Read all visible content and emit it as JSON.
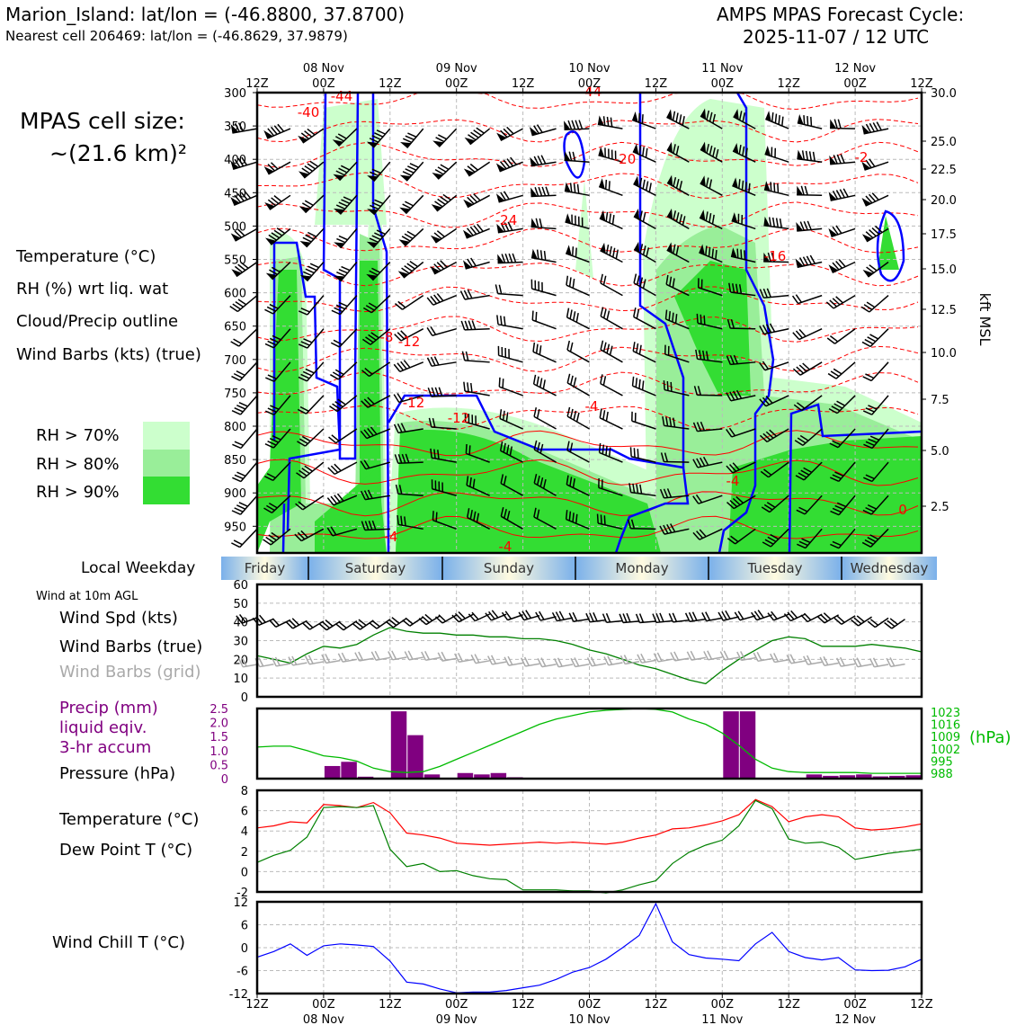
{
  "header": {
    "station": "Marion_Island: lat/lon = (-46.8800, 37.8700)",
    "nearest_cell": "Nearest cell 206469: lat/lon = (-46.8629, 37.9879)",
    "cycle_title": "AMPS MPAS Forecast Cycle:",
    "cycle_date": "2025-11-07 / 12 UTC",
    "cell_size_label": "MPAS cell size:",
    "cell_size_value": "~(21.6 km)²"
  },
  "colors": {
    "temperature": "#ff0000",
    "rh": "#33cc33",
    "cloud": "#0000ff",
    "wind_spd": "#008000",
    "precip": "#800080",
    "pressure": "#00bb00",
    "dewpoint": "#008000",
    "windchill": "#0000ff",
    "grid_barbs": "#aaaaaa",
    "rh70": "#ccffcc",
    "rh80": "#99ee99",
    "rh90": "#33dd33"
  },
  "time_axis": {
    "ticks": [
      "12Z",
      "00Z",
      "12Z",
      "00Z",
      "12Z",
      "00Z",
      "12Z",
      "00Z",
      "12Z",
      "00Z",
      "12Z"
    ],
    "dates": [
      "08 Nov",
      "09 Nov",
      "10 Nov",
      "11 Nov",
      "12 Nov"
    ],
    "weekdays": [
      "Friday",
      "Saturday",
      "Sunday",
      "Monday",
      "Tuesday",
      "Wednesday"
    ]
  },
  "upper_panel": {
    "legend": {
      "temperature": "Temperature (°C)",
      "rh": "RH (%) wrt liq. wat",
      "cloud": "Cloud/Precip outline",
      "barbs": "Wind Barbs (kts) (true)",
      "rh70": "RH > 70%",
      "rh80": "RH > 80%",
      "rh90": "RH > 90%"
    },
    "pressure_ticks": [
      "300",
      "350",
      "400",
      "450",
      "500",
      "550",
      "600",
      "650",
      "700",
      "750",
      "800",
      "850",
      "900",
      "950"
    ],
    "height_ticks": [
      "30.0",
      "25.0",
      "22.5",
      "20.0",
      "17.5",
      "15.0",
      "12.5",
      "10.0",
      "7.5",
      "5.0",
      "2.5"
    ],
    "height_label": "kft MSL",
    "local_weekday_label": "Local Weekday",
    "isotherm_labels": [
      "-44",
      "-40",
      "-44",
      "-20",
      "-24",
      "-16",
      "-8",
      "-12",
      "-12",
      "-12",
      "-4",
      "-4",
      "-4",
      "-4",
      "0",
      "-2"
    ]
  },
  "chart_data": [
    {
      "type": "line",
      "title": "Wind at 10m AGL",
      "x": [
        "12Z",
        "15Z",
        "18Z",
        "21Z",
        "00Z",
        "03Z",
        "06Z",
        "09Z",
        "12Z",
        "15Z",
        "18Z",
        "21Z",
        "00Z",
        "03Z",
        "06Z",
        "09Z",
        "12Z",
        "15Z",
        "18Z",
        "21Z",
        "00Z",
        "03Z",
        "06Z",
        "09Z",
        "12Z",
        "15Z",
        "18Z",
        "21Z",
        "00Z",
        "03Z",
        "06Z",
        "09Z",
        "12Z",
        "15Z",
        "18Z",
        "21Z",
        "00Z",
        "03Z",
        "06Z",
        "09Z",
        "12Z"
      ],
      "series": [
        {
          "name": "Wind Spd (kts)",
          "values": [
            22,
            20,
            18,
            23,
            27,
            26,
            28,
            33,
            37,
            35,
            34,
            34,
            33,
            33,
            32,
            32,
            31,
            31,
            30,
            28,
            25,
            23,
            20,
            17,
            15,
            12,
            9,
            7,
            14,
            20,
            25,
            30,
            32,
            31,
            27,
            27,
            27,
            28,
            27,
            26,
            24
          ]
        }
      ],
      "labels": [
        "Wind Spd (kts)",
        "Wind Barbs (true)",
        "Wind Barbs (grid)"
      ],
      "ylim": [
        0,
        60
      ],
      "yticks": [
        "60",
        "50",
        "40",
        "30",
        "20",
        "10",
        "0"
      ],
      "grid": true
    },
    {
      "type": "bar",
      "x": [
        "12Z",
        "15Z",
        "18Z",
        "21Z",
        "00Z",
        "03Z",
        "06Z",
        "09Z",
        "12Z",
        "15Z",
        "18Z",
        "21Z",
        "00Z",
        "03Z",
        "06Z",
        "09Z",
        "12Z",
        "15Z",
        "18Z",
        "21Z",
        "00Z",
        "03Z",
        "06Z",
        "09Z",
        "12Z",
        "15Z",
        "18Z",
        "21Z",
        "00Z",
        "03Z",
        "06Z",
        "09Z",
        "12Z",
        "15Z",
        "18Z",
        "21Z",
        "00Z",
        "03Z",
        "06Z",
        "09Z",
        "12Z"
      ],
      "series": [
        {
          "name": "Precip (mm) liquid eqiv. 3-hr accum",
          "values": [
            0,
            0,
            0,
            0,
            0.45,
            0.6,
            0.07,
            0,
            2.4,
            1.55,
            0.15,
            0,
            0.2,
            0.15,
            0.2,
            0.05,
            0,
            0,
            0,
            0,
            0,
            0,
            0,
            0,
            0,
            0,
            0,
            0,
            2.4,
            2.4,
            0,
            0,
            0,
            0.15,
            0.1,
            0.12,
            0.15,
            0.08,
            0.1,
            0.12,
            0
          ]
        },
        {
          "name": "Pressure (hPa)",
          "values": [
            1003,
            1003.5,
            1003.5,
            1001,
            998,
            997,
            995,
            991,
            989,
            988.5,
            989,
            992,
            996,
            1000,
            1004,
            1008,
            1012,
            1016,
            1019,
            1021,
            1023,
            1024,
            1024.5,
            1025,
            1024.5,
            1023,
            1019,
            1016,
            1011,
            1004,
            996,
            991,
            989,
            988.5,
            988.5,
            988.5,
            988.5,
            988,
            988,
            988,
            988
          ]
        }
      ],
      "labels": [
        "Precip (mm)",
        "liquid eqiv.",
        "3-hr accum",
        "Pressure (hPa)"
      ],
      "ylim": [
        0,
        2.5
      ],
      "yticks": [
        "2.5",
        "2.0",
        "1.5",
        "1.0",
        "0.5",
        "0"
      ],
      "y2lim": [
        985,
        1025
      ],
      "y2ticks": [
        "1023",
        "1016",
        "1009",
        "1002",
        "995",
        "988"
      ],
      "y2label": "(hPa)"
    },
    {
      "type": "line",
      "x": [
        "12Z",
        "15Z",
        "18Z",
        "21Z",
        "00Z",
        "03Z",
        "06Z",
        "09Z",
        "12Z",
        "15Z",
        "18Z",
        "21Z",
        "00Z",
        "03Z",
        "06Z",
        "09Z",
        "12Z",
        "15Z",
        "18Z",
        "21Z",
        "00Z",
        "03Z",
        "06Z",
        "09Z",
        "12Z",
        "15Z",
        "18Z",
        "21Z",
        "00Z",
        "03Z",
        "06Z",
        "09Z",
        "12Z",
        "15Z",
        "18Z",
        "21Z",
        "00Z",
        "03Z",
        "06Z",
        "09Z",
        "12Z"
      ],
      "series": [
        {
          "name": "Temperature (°C)",
          "values": [
            4.3,
            4.5,
            4.9,
            4.8,
            6.6,
            6.5,
            6.3,
            6.8,
            5.8,
            3.8,
            3.6,
            3.3,
            2.8,
            2.7,
            2.6,
            2.7,
            2.8,
            2.9,
            2.8,
            2.9,
            2.8,
            2.7,
            2.9,
            3.3,
            3.6,
            4.2,
            4.3,
            4.6,
            5.0,
            5.6,
            7.1,
            6.4,
            4.9,
            5.4,
            5.6,
            5.4,
            4.3,
            4.1,
            4.2,
            4.4,
            4.7
          ]
        },
        {
          "name": "Dew Point T (°C)",
          "values": [
            0.9,
            1.6,
            2.1,
            3.4,
            6.3,
            6.4,
            6.3,
            6.5,
            2.2,
            0.5,
            0.8,
            0.0,
            0.1,
            -0.4,
            -0.7,
            -0.8,
            -1.8,
            -1.8,
            -1.8,
            -1.9,
            -1.9,
            -2.1,
            -1.8,
            -1.3,
            -0.9,
            0.8,
            1.9,
            2.6,
            3.1,
            4.5,
            7.0,
            6.2,
            3.2,
            2.8,
            2.9,
            2.4,
            1.2,
            1.5,
            1.8,
            2.0,
            2.2
          ]
        }
      ],
      "labels": [
        "Temperature (°C)",
        "Dew Point T (°C)"
      ],
      "ylim": [
        -2,
        8
      ],
      "yticks": [
        "8",
        "6",
        "4",
        "2",
        "0",
        "-2"
      ],
      "grid": true
    },
    {
      "type": "line",
      "x": [
        "12Z",
        "15Z",
        "18Z",
        "21Z",
        "00Z",
        "03Z",
        "06Z",
        "09Z",
        "12Z",
        "15Z",
        "18Z",
        "21Z",
        "00Z",
        "03Z",
        "06Z",
        "09Z",
        "12Z",
        "15Z",
        "18Z",
        "21Z",
        "00Z",
        "03Z",
        "06Z",
        "09Z",
        "12Z",
        "15Z",
        "18Z",
        "21Z",
        "00Z",
        "03Z",
        "06Z",
        "09Z",
        "12Z",
        "15Z",
        "18Z",
        "21Z",
        "00Z",
        "03Z",
        "06Z",
        "09Z",
        "12Z"
      ],
      "series": [
        {
          "name": "Wind Chill T (°C)",
          "values": [
            -2.5,
            -1,
            1,
            -2,
            0.5,
            1,
            0.7,
            0.3,
            -3.5,
            -9,
            -9.5,
            -10.8,
            -11.8,
            -11.6,
            -11.6,
            -11.2,
            -10.5,
            -9.8,
            -8.3,
            -6.4,
            -5.2,
            -3,
            0,
            3.2,
            11.5,
            1.5,
            -1.8,
            -2.7,
            -3,
            -3.4,
            1,
            4,
            -1,
            -2.6,
            -3.2,
            -2.6,
            -5.8,
            -6,
            -5.9,
            -5,
            -3
          ]
        }
      ],
      "labels": [
        "Wind Chill T (°C)"
      ],
      "ylim": [
        -12,
        12
      ],
      "yticks": [
        "12",
        "6",
        "0",
        "-6",
        "-12"
      ],
      "grid": true
    }
  ],
  "lower_labels": {
    "wind_10m": "Wind at 10m AGL"
  }
}
